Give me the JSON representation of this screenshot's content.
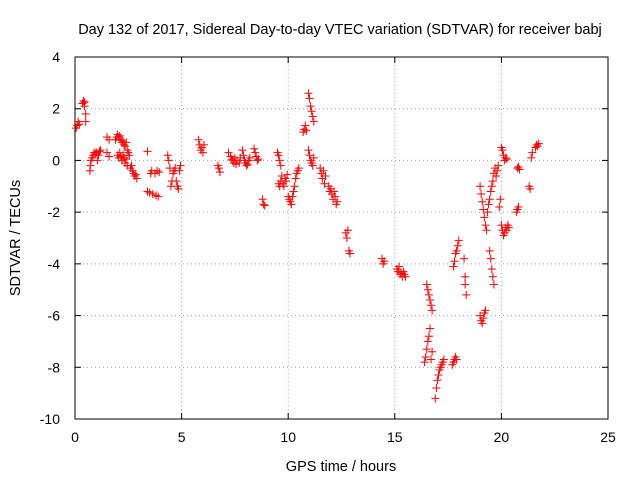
{
  "chart_data": {
    "type": "scatter",
    "title": "Day 132 of 2017, Sidereal Day-to-day VTEC variation (SDTVAR) for receiver babj",
    "xlabel": "GPS time / hours",
    "ylabel": "SDTVAR / TECUs",
    "xlim": [
      0,
      25
    ],
    "ylim": [
      -10,
      4
    ],
    "xticks": [
      0,
      5,
      10,
      15,
      20,
      25
    ],
    "yticks": [
      -10,
      -8,
      -6,
      -4,
      -2,
      0,
      2,
      4
    ],
    "grid": true,
    "marker": "plus",
    "color": "#ff0000",
    "series": [
      {
        "name": "SDTVAR",
        "points": [
          [
            0.05,
            1.25
          ],
          [
            0.1,
            1.35
          ],
          [
            0.15,
            1.5
          ],
          [
            0.2,
            1.4
          ],
          [
            0.35,
            2.2
          ],
          [
            0.4,
            2.3
          ],
          [
            0.45,
            2.1
          ],
          [
            0.5,
            1.8
          ],
          [
            0.5,
            1.5
          ],
          [
            0.45,
            2.25
          ],
          [
            0.7,
            -0.4
          ],
          [
            0.72,
            -0.2
          ],
          [
            0.75,
            0.0
          ],
          [
            0.8,
            0.1
          ],
          [
            0.85,
            0.2
          ],
          [
            0.9,
            0.3
          ],
          [
            0.95,
            0.25
          ],
          [
            1.0,
            0.3
          ],
          [
            1.05,
            0.0
          ],
          [
            1.1,
            0.2
          ],
          [
            1.15,
            0.35
          ],
          [
            1.2,
            0.4
          ],
          [
            1.5,
            0.9
          ],
          [
            1.6,
            0.8
          ],
          [
            1.5,
            0.3
          ],
          [
            1.6,
            0.15
          ],
          [
            1.9,
            0.8
          ],
          [
            1.95,
            0.9
          ],
          [
            2.0,
            1.0
          ],
          [
            2.05,
            0.9
          ],
          [
            2.1,
            0.95
          ],
          [
            2.15,
            0.8
          ],
          [
            2.2,
            0.7
          ],
          [
            2.25,
            0.75
          ],
          [
            2.3,
            0.6
          ],
          [
            2.35,
            0.55
          ],
          [
            2.4,
            0.7
          ],
          [
            2.45,
            0.4
          ],
          [
            2.0,
            0.2
          ],
          [
            2.05,
            0.1
          ],
          [
            2.1,
            0.3
          ],
          [
            2.15,
            0.15
          ],
          [
            2.2,
            0.0
          ],
          [
            2.25,
            0.2
          ],
          [
            2.3,
            0.1
          ],
          [
            2.35,
            -0.1
          ],
          [
            2.4,
            0.05
          ],
          [
            2.45,
            -0.2
          ],
          [
            2.5,
            0.3
          ],
          [
            2.55,
            0.2
          ],
          [
            2.6,
            -0.3
          ],
          [
            2.65,
            -0.2
          ],
          [
            2.7,
            -0.4
          ],
          [
            2.75,
            -0.5
          ],
          [
            2.8,
            -0.6
          ],
          [
            2.85,
            -0.55
          ],
          [
            2.9,
            -0.7
          ],
          [
            3.4,
            0.35
          ],
          [
            3.4,
            -1.2
          ],
          [
            3.5,
            -1.25
          ],
          [
            3.55,
            -0.5
          ],
          [
            3.6,
            -0.4
          ],
          [
            3.65,
            -1.3
          ],
          [
            3.75,
            -0.5
          ],
          [
            3.8,
            -1.35
          ],
          [
            3.85,
            -0.4
          ],
          [
            3.9,
            -1.4
          ],
          [
            3.95,
            -0.45
          ],
          [
            4.35,
            0.2
          ],
          [
            4.4,
            0.0
          ],
          [
            4.45,
            -0.3
          ],
          [
            4.5,
            -1.0
          ],
          [
            4.55,
            -0.8
          ],
          [
            4.6,
            -0.5
          ],
          [
            4.65,
            -0.4
          ],
          [
            4.7,
            -0.3
          ],
          [
            4.75,
            -0.8
          ],
          [
            4.8,
            -1.0
          ],
          [
            4.85,
            -1.1
          ],
          [
            4.9,
            -0.4
          ],
          [
            4.95,
            -0.2
          ],
          [
            5.8,
            0.8
          ],
          [
            5.85,
            0.6
          ],
          [
            5.9,
            0.4
          ],
          [
            5.95,
            0.5
          ],
          [
            6.0,
            0.3
          ],
          [
            6.05,
            0.6
          ],
          [
            6.7,
            -0.2
          ],
          [
            6.75,
            -0.3
          ],
          [
            6.8,
            -0.45
          ],
          [
            7.2,
            0.3
          ],
          [
            7.3,
            0.15
          ],
          [
            7.35,
            0.05
          ],
          [
            7.4,
            0.0
          ],
          [
            7.45,
            -0.1
          ],
          [
            7.5,
            0.1
          ],
          [
            7.55,
            -0.15
          ],
          [
            7.6,
            0.0
          ],
          [
            7.7,
            -0.1
          ],
          [
            7.75,
            0.1
          ],
          [
            7.85,
            0.4
          ],
          [
            7.9,
            0.2
          ],
          [
            7.95,
            0.0
          ],
          [
            8.0,
            -0.1
          ],
          [
            8.05,
            -0.2
          ],
          [
            8.1,
            -0.15
          ],
          [
            8.15,
            0.0
          ],
          [
            8.2,
            0.1
          ],
          [
            8.4,
            0.45
          ],
          [
            8.45,
            0.3
          ],
          [
            8.5,
            0.15
          ],
          [
            8.55,
            0.0
          ],
          [
            8.6,
            0.05
          ],
          [
            8.8,
            -1.5
          ],
          [
            8.85,
            -1.7
          ],
          [
            8.9,
            -1.75
          ],
          [
            9.5,
            0.3
          ],
          [
            9.55,
            0.2
          ],
          [
            9.6,
            0.0
          ],
          [
            9.65,
            -0.2
          ],
          [
            9.55,
            -0.9
          ],
          [
            9.6,
            -1.0
          ],
          [
            9.65,
            -0.8
          ],
          [
            9.7,
            -0.6
          ],
          [
            9.75,
            -0.9
          ],
          [
            9.8,
            -1.0
          ],
          [
            9.85,
            -0.7
          ],
          [
            9.9,
            -0.8
          ],
          [
            9.95,
            -0.55
          ],
          [
            10.0,
            -1.4
          ],
          [
            10.05,
            -1.5
          ],
          [
            10.1,
            -1.6
          ],
          [
            10.15,
            -1.7
          ],
          [
            10.2,
            -1.4
          ],
          [
            10.25,
            -1.2
          ],
          [
            10.3,
            -1.0
          ],
          [
            10.35,
            -0.7
          ],
          [
            10.4,
            -0.5
          ],
          [
            10.45,
            -0.4
          ],
          [
            10.5,
            -0.3
          ],
          [
            10.7,
            1.1
          ],
          [
            10.75,
            1.2
          ],
          [
            10.8,
            1.35
          ],
          [
            10.85,
            1.15
          ],
          [
            10.95,
            2.6
          ],
          [
            11.0,
            2.4
          ],
          [
            11.05,
            2.1
          ],
          [
            11.1,
            1.9
          ],
          [
            11.15,
            1.7
          ],
          [
            11.2,
            1.5
          ],
          [
            10.95,
            0.4
          ],
          [
            11.0,
            0.2
          ],
          [
            11.05,
            0.0
          ],
          [
            11.1,
            -0.1
          ],
          [
            11.15,
            -0.2
          ],
          [
            11.2,
            0.1
          ],
          [
            11.5,
            -0.3
          ],
          [
            11.55,
            -0.5
          ],
          [
            11.6,
            -0.7
          ],
          [
            11.65,
            -0.4
          ],
          [
            11.7,
            -0.9
          ],
          [
            11.75,
            -0.6
          ],
          [
            11.9,
            -1.0
          ],
          [
            11.95,
            -1.2
          ],
          [
            12.0,
            -1.1
          ],
          [
            12.05,
            -1.3
          ],
          [
            12.1,
            -1.5
          ],
          [
            12.15,
            -1.2
          ],
          [
            12.2,
            -1.4
          ],
          [
            12.25,
            -1.7
          ],
          [
            12.3,
            -1.6
          ],
          [
            12.7,
            -2.8
          ],
          [
            12.75,
            -3.0
          ],
          [
            12.8,
            -2.7
          ],
          [
            12.85,
            -3.5
          ],
          [
            12.9,
            -3.6
          ],
          [
            14.4,
            -3.8
          ],
          [
            14.45,
            -4.0
          ],
          [
            14.5,
            -3.9
          ],
          [
            15.1,
            -4.2
          ],
          [
            15.15,
            -4.3
          ],
          [
            15.2,
            -4.1
          ],
          [
            15.25,
            -4.4
          ],
          [
            15.3,
            -4.35
          ],
          [
            15.35,
            -4.5
          ],
          [
            15.4,
            -4.3
          ],
          [
            15.45,
            -4.4
          ],
          [
            15.5,
            -4.5
          ],
          [
            16.4,
            -7.8
          ],
          [
            16.45,
            -7.6
          ],
          [
            16.5,
            -7.3
          ],
          [
            16.55,
            -7.0
          ],
          [
            16.6,
            -6.8
          ],
          [
            16.65,
            -6.5
          ],
          [
            16.7,
            -7.7
          ],
          [
            16.75,
            -7.4
          ],
          [
            16.55,
            -5.0
          ],
          [
            16.6,
            -5.2
          ],
          [
            16.65,
            -5.4
          ],
          [
            16.7,
            -5.6
          ],
          [
            16.75,
            -5.8
          ],
          [
            16.5,
            -4.8
          ],
          [
            16.9,
            -9.2
          ],
          [
            16.95,
            -8.8
          ],
          [
            17.0,
            -8.5
          ],
          [
            17.05,
            -8.3
          ],
          [
            17.1,
            -8.1
          ],
          [
            17.15,
            -8.0
          ],
          [
            17.2,
            -7.9
          ],
          [
            17.25,
            -7.8
          ],
          [
            17.3,
            -7.7
          ],
          [
            17.7,
            -7.9
          ],
          [
            17.75,
            -7.8
          ],
          [
            17.8,
            -7.7
          ],
          [
            17.85,
            -7.6
          ],
          [
            17.9,
            -7.7
          ],
          [
            17.75,
            -4.1
          ],
          [
            17.8,
            -3.9
          ],
          [
            17.85,
            -3.6
          ],
          [
            17.9,
            -3.5
          ],
          [
            17.95,
            -3.3
          ],
          [
            18.0,
            -3.1
          ],
          [
            18.25,
            -3.8
          ],
          [
            18.3,
            -4.8
          ],
          [
            18.35,
            -5.2
          ],
          [
            18.3,
            -4.5
          ],
          [
            19.0,
            -1.0
          ],
          [
            19.05,
            -1.3
          ],
          [
            19.1,
            -1.6
          ],
          [
            19.15,
            -1.9
          ],
          [
            19.2,
            -2.2
          ],
          [
            19.25,
            -2.5
          ],
          [
            19.3,
            -2.7
          ],
          [
            19.35,
            -2.0
          ],
          [
            19.4,
            -1.7
          ],
          [
            19.45,
            -1.5
          ],
          [
            19.5,
            -1.2
          ],
          [
            19.0,
            -6.0
          ],
          [
            19.05,
            -6.2
          ],
          [
            19.1,
            -6.3
          ],
          [
            19.15,
            -6.1
          ],
          [
            19.2,
            -5.9
          ],
          [
            19.25,
            -5.8
          ],
          [
            19.45,
            -3.5
          ],
          [
            19.5,
            -3.8
          ],
          [
            19.55,
            -4.2
          ],
          [
            19.6,
            -4.5
          ],
          [
            19.65,
            -4.8
          ],
          [
            19.55,
            -1.0
          ],
          [
            19.6,
            -0.8
          ],
          [
            19.65,
            -0.5
          ],
          [
            19.7,
            -0.3
          ],
          [
            19.75,
            -0.6
          ],
          [
            19.8,
            -0.4
          ],
          [
            19.85,
            -0.2
          ],
          [
            19.9,
            -1.8
          ],
          [
            19.95,
            -1.5
          ],
          [
            20.0,
            0.5
          ],
          [
            20.05,
            0.4
          ],
          [
            20.1,
            0.2
          ],
          [
            20.15,
            0.0
          ],
          [
            20.2,
            0.1
          ],
          [
            20.25,
            0.05
          ],
          [
            20.0,
            -2.5
          ],
          [
            20.05,
            -2.7
          ],
          [
            20.1,
            -2.9
          ],
          [
            20.15,
            -2.8
          ],
          [
            20.2,
            -2.6
          ],
          [
            20.25,
            -2.7
          ],
          [
            20.3,
            -2.5
          ],
          [
            20.35,
            -2.6
          ],
          [
            20.7,
            -2.0
          ],
          [
            20.75,
            -1.9
          ],
          [
            20.8,
            -1.8
          ],
          [
            20.75,
            -0.3
          ],
          [
            20.8,
            -0.25
          ],
          [
            20.85,
            -0.35
          ],
          [
            21.3,
            -1.0
          ],
          [
            21.35,
            -1.1
          ],
          [
            21.4,
            0.1
          ],
          [
            21.45,
            0.3
          ],
          [
            21.6,
            0.5
          ],
          [
            21.65,
            0.6
          ],
          [
            21.7,
            0.55
          ],
          [
            21.75,
            0.65
          ]
        ]
      }
    ]
  }
}
